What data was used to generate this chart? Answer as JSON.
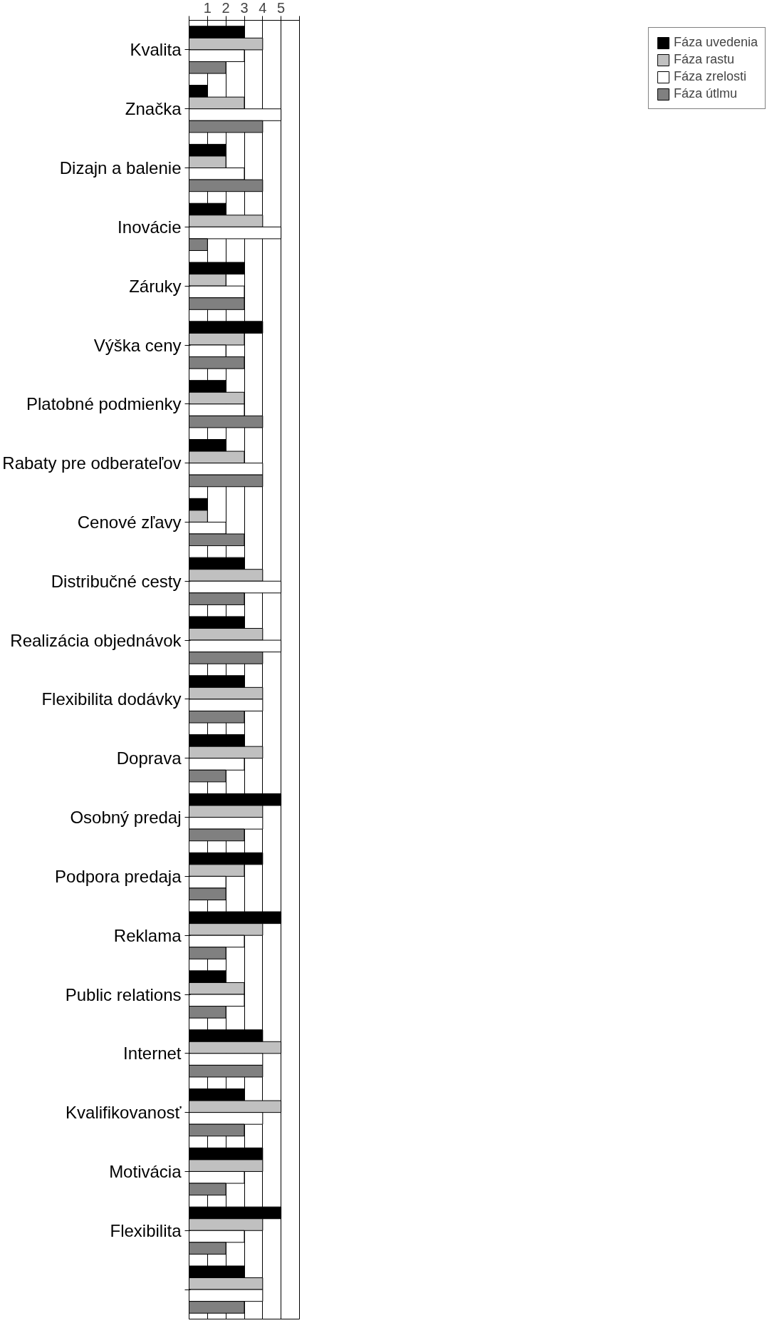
{
  "chart_data": {
    "type": "bar",
    "orientation": "horizontal",
    "categories": [
      "Kvalita",
      "Značka",
      "Dizajn a balenie",
      "Inovácie",
      "Záruky",
      "Výška ceny",
      "Platobné podmienky",
      "Rabaty pre odberateľov",
      "Cenové zľavy",
      "Distribučné cesty",
      "Realizácia objednávok",
      "Flexibilita dodávky",
      "Doprava",
      "Osobný predaj",
      "Podpora predaja",
      "Reklama",
      "Public relations",
      "Internet",
      "Kvalifikovanosť",
      "Motivácia",
      "Flexibilita",
      null
    ],
    "series": [
      {
        "name": "Fáza uvedenia",
        "color": "#000000",
        "values": [
          3,
          1,
          2,
          2,
          3,
          4,
          2,
          2,
          1,
          3,
          3,
          3,
          3,
          5,
          4,
          5,
          2,
          4,
          3,
          4,
          5,
          3
        ]
      },
      {
        "name": "Fáza rastu",
        "color": "#c0c0c0",
        "values": [
          4,
          3,
          2,
          4,
          2,
          3,
          3,
          3,
          1,
          4,
          4,
          4,
          4,
          4,
          3,
          4,
          3,
          5,
          5,
          4,
          4,
          4
        ]
      },
      {
        "name": "Fáza zrelosti",
        "color": "#ffffff",
        "values": [
          3,
          5,
          3,
          5,
          3,
          2,
          3,
          4,
          2,
          5,
          5,
          4,
          3,
          4,
          2,
          3,
          3,
          4,
          4,
          3,
          3,
          4
        ]
      },
      {
        "name": "Fáza útlmu",
        "color": "#808080",
        "values": [
          2,
          4,
          4,
          1,
          3,
          3,
          4,
          4,
          3,
          3,
          4,
          3,
          2,
          3,
          2,
          2,
          2,
          4,
          3,
          2,
          2,
          3
        ]
      }
    ],
    "xlim": [
      0,
      6
    ],
    "xticks": [
      {
        "value": 0,
        "label": null
      },
      1,
      2,
      3,
      4,
      5,
      {
        "value": 6,
        "label": null
      }
    ],
    "grid": "x",
    "legend": "right"
  }
}
